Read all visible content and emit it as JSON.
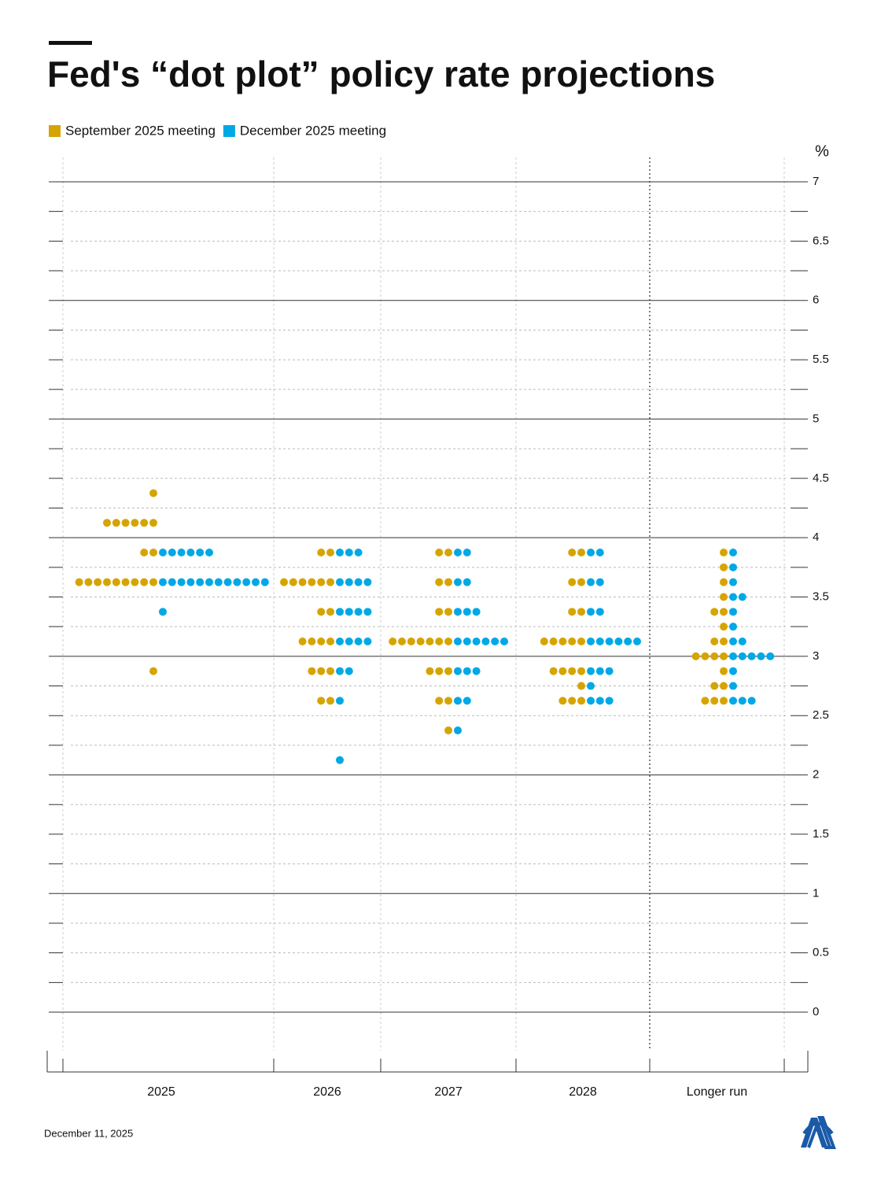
{
  "chart_data": {
    "type": "dot",
    "title": "Fed's “dot plot” policy rate projections",
    "y_unit": "%",
    "date": "December 11, 2025",
    "categories": [
      "2025",
      "2026",
      "2027",
      "2028",
      "Longer run"
    ],
    "ylim": [
      0,
      7
    ],
    "yticks": [
      0,
      0.5,
      1,
      1.5,
      2,
      2.5,
      3,
      3.5,
      4,
      4.5,
      5,
      5.5,
      6,
      6.5,
      7
    ],
    "series": [
      {
        "name": "September 2025 meeting",
        "color": "#d6a400",
        "values": [
          [
            4.375,
            4.125,
            4.125,
            4.125,
            4.125,
            4.125,
            4.125,
            3.875,
            3.875,
            3.625,
            3.625,
            3.625,
            3.625,
            3.625,
            3.625,
            3.625,
            3.625,
            3.625,
            2.875
          ],
          [
            3.875,
            3.875,
            3.625,
            3.625,
            3.625,
            3.625,
            3.625,
            3.625,
            3.375,
            3.375,
            3.125,
            3.125,
            3.125,
            3.125,
            2.875,
            2.875,
            2.875,
            2.625,
            2.625
          ],
          [
            3.875,
            3.875,
            3.625,
            3.625,
            3.375,
            3.375,
            3.125,
            3.125,
            3.125,
            3.125,
            3.125,
            3.125,
            3.125,
            2.875,
            2.875,
            2.875,
            2.625,
            2.625,
            2.375
          ],
          [
            3.875,
            3.875,
            3.625,
            3.625,
            3.375,
            3.375,
            3.125,
            3.125,
            3.125,
            3.125,
            3.125,
            2.875,
            2.875,
            2.875,
            2.875,
            2.75,
            2.625,
            2.625,
            2.625
          ],
          [
            3.875,
            3.75,
            3.625,
            3.5,
            3.375,
            3.375,
            3.25,
            3.125,
            3.125,
            3,
            3,
            3,
            3,
            2.875,
            2.75,
            2.75,
            2.625,
            2.625,
            2.625
          ]
        ]
      },
      {
        "name": "December 2025 meeting",
        "color": "#00a8e6",
        "values": [
          [
            3.875,
            3.875,
            3.875,
            3.875,
            3.875,
            3.875,
            3.625,
            3.625,
            3.625,
            3.625,
            3.625,
            3.625,
            3.625,
            3.625,
            3.625,
            3.625,
            3.625,
            3.625,
            3.375
          ],
          [
            3.875,
            3.875,
            3.875,
            3.625,
            3.625,
            3.625,
            3.625,
            3.375,
            3.375,
            3.375,
            3.375,
            3.125,
            3.125,
            3.125,
            3.125,
            2.875,
            2.875,
            2.625,
            2.125
          ],
          [
            3.875,
            3.875,
            3.625,
            3.625,
            3.375,
            3.375,
            3.375,
            3.125,
            3.125,
            3.125,
            3.125,
            3.125,
            3.125,
            2.875,
            2.875,
            2.875,
            2.625,
            2.625,
            2.375
          ],
          [
            3.875,
            3.875,
            3.625,
            3.625,
            3.375,
            3.375,
            3.125,
            3.125,
            3.125,
            3.125,
            3.125,
            3.125,
            2.875,
            2.875,
            2.875,
            2.75,
            2.625,
            2.625,
            2.625
          ],
          [
            3.875,
            3.75,
            3.625,
            3.5,
            3.5,
            3.375,
            3.25,
            3.125,
            3.125,
            3,
            3,
            3,
            3,
            3,
            2.875,
            2.75,
            2.625,
            2.625,
            2.625
          ]
        ]
      }
    ],
    "grid": true
  }
}
